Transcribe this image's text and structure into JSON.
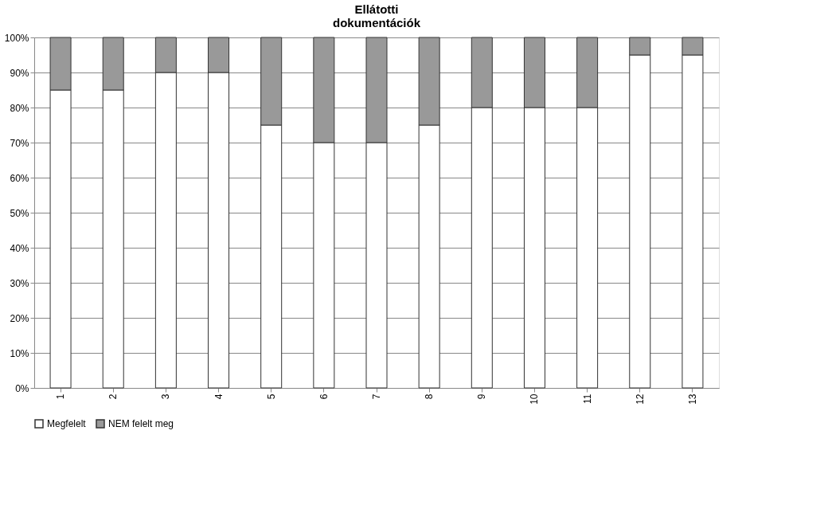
{
  "chart_data": {
    "type": "bar",
    "title": "Ellátotti\ndokumentációk",
    "stacked": true,
    "categories": [
      "1",
      "2",
      "3",
      "4",
      "5",
      "6",
      "7",
      "8",
      "9",
      "10",
      "11",
      "12",
      "13"
    ],
    "series": [
      {
        "name": "Megfelelt",
        "color": "#ffffff",
        "values": [
          85,
          85,
          90,
          90,
          75,
          70,
          70,
          75,
          80,
          80,
          80,
          95,
          95
        ]
      },
      {
        "name": "NEM felelt meg",
        "color": "#999999",
        "values": [
          15,
          15,
          10,
          10,
          25,
          30,
          30,
          25,
          20,
          20,
          20,
          5,
          5
        ]
      }
    ],
    "ylim": [
      0,
      100
    ],
    "yticks": [
      {
        "value": 0,
        "label": "0%"
      },
      {
        "value": 10,
        "label": "10%"
      },
      {
        "value": 20,
        "label": "20%"
      },
      {
        "value": 30,
        "label": "30%"
      },
      {
        "value": 40,
        "label": "40%"
      },
      {
        "value": 50,
        "label": "50%"
      },
      {
        "value": 60,
        "label": "60%"
      },
      {
        "value": 70,
        "label": "70%"
      },
      {
        "value": 80,
        "label": "80%"
      },
      {
        "value": 90,
        "label": "90%"
      },
      {
        "value": 100,
        "label": "100%"
      }
    ],
    "grid": "y",
    "legend": "bottom"
  }
}
